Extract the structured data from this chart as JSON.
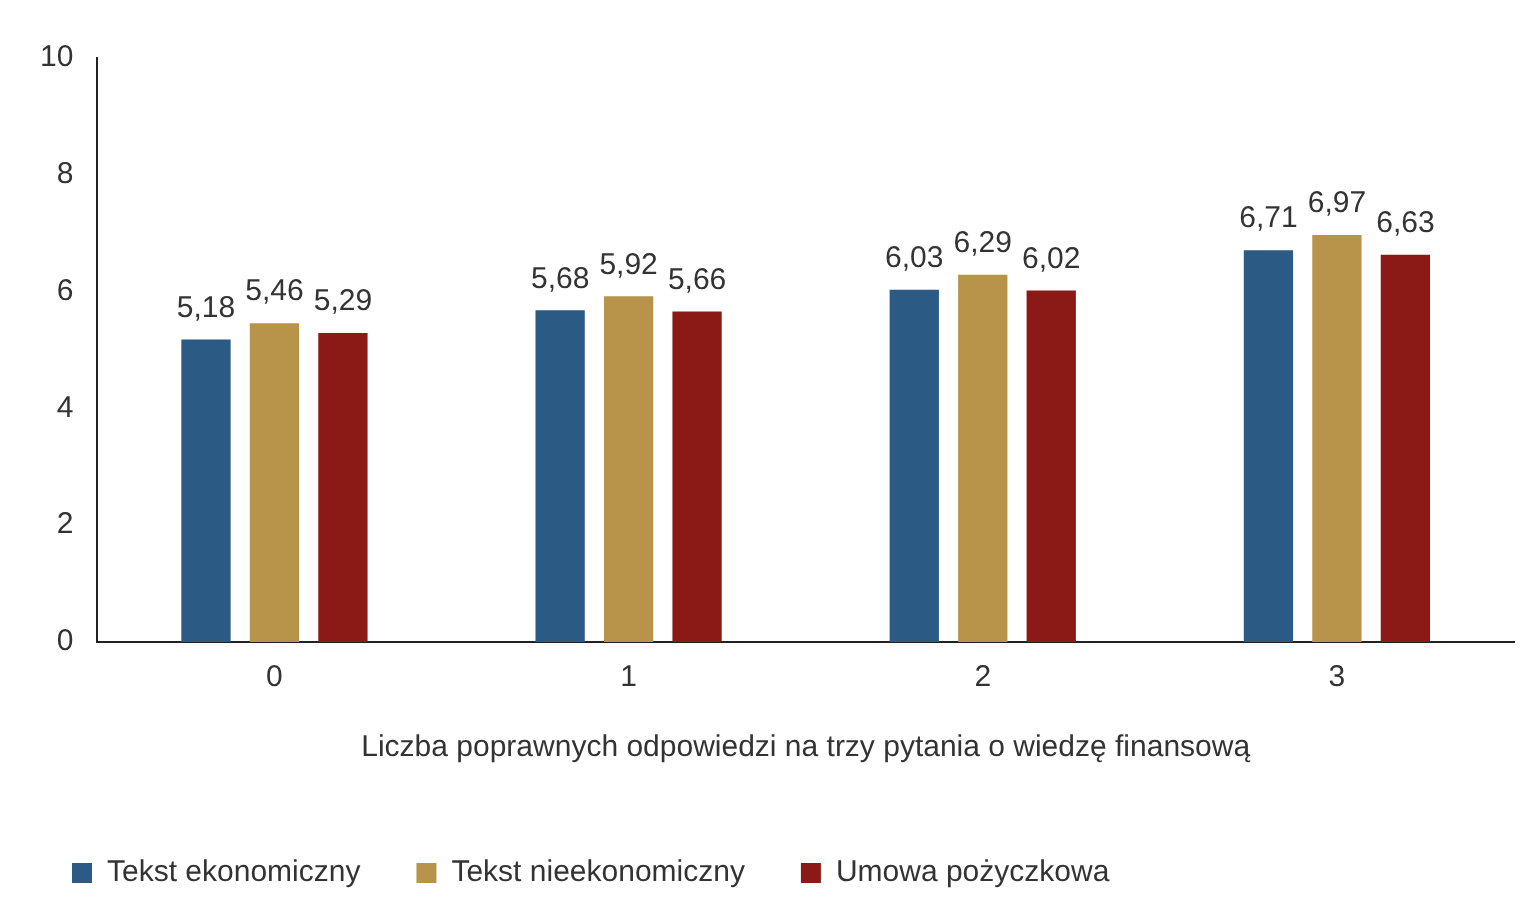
{
  "chart_data": {
    "type": "bar",
    "xlabel": "Liczba poprawnych odpowiedzi na trzy pytania o wiedzę finansową",
    "categories": [
      "0",
      "1",
      "2",
      "3"
    ],
    "series": [
      {
        "name": "Tekst ekonomiczny",
        "color": "#2b5a84",
        "values": [
          5.18,
          5.68,
          6.03,
          6.71
        ],
        "value_labels": [
          "5,18",
          "5,68",
          "6,03",
          "6,71"
        ]
      },
      {
        "name": "Tekst nieekonomiczny",
        "color": "#b8934a",
        "values": [
          5.46,
          5.92,
          6.29,
          6.97
        ],
        "value_labels": [
          "5,46",
          "5,92",
          "6,29",
          "6,97"
        ]
      },
      {
        "name": "Umowa pożyczkowa",
        "color": "#8b1a17",
        "values": [
          5.29,
          5.66,
          6.02,
          6.63
        ],
        "value_labels": [
          "5,29",
          "5,66",
          "6,02",
          "6,63"
        ]
      }
    ],
    "ylim": [
      0,
      10
    ],
    "yticks": [
      0,
      2,
      4,
      6,
      8,
      10
    ],
    "grid": false,
    "legend": "bottom"
  }
}
